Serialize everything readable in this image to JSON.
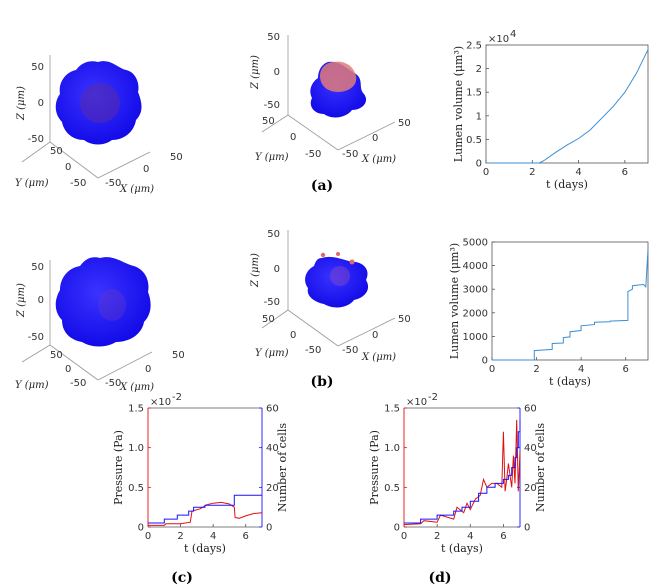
{
  "captions": {
    "a": "(a)",
    "b": "(b)",
    "c": "(c)",
    "d": "(d)"
  },
  "renders": {
    "x_label": "X (μm)",
    "y_label": "Y (μm)",
    "z_label": "Z (μm)",
    "z_ticks": [
      "50",
      "0",
      "-50"
    ],
    "x_ticks": [
      "-50",
      "0",
      "50"
    ],
    "y_ticks": [
      "50",
      "0",
      "-50"
    ],
    "colors": {
      "cells": "#1a12ff",
      "lumen": "#e07a7a"
    }
  },
  "chart_data": [
    {
      "id": "lumen_a",
      "type": "line",
      "xlabel": "t (days)",
      "ylabel": "Lumen volume (μm³)",
      "exponent_label": "×10",
      "exponent_power": "4",
      "xlim": [
        0,
        7
      ],
      "ylim": [
        0,
        2.5
      ],
      "x_ticks": [
        0,
        2,
        4,
        6
      ],
      "y_ticks": [
        0,
        0.5,
        1,
        1.5,
        2,
        2.5
      ],
      "y_tick_labels": [
        "0",
        "0.5",
        "1",
        "1.5",
        "2",
        "2.5"
      ],
      "series": [
        {
          "name": "lumen volume",
          "color": "#3b8fd4",
          "x": [
            0,
            2.3,
            2.5,
            3,
            3.5,
            4,
            4.5,
            5,
            5.5,
            6,
            6.5,
            7
          ],
          "y": [
            0,
            0,
            0.05,
            0.22,
            0.38,
            0.52,
            0.7,
            0.95,
            1.2,
            1.5,
            1.9,
            2.4
          ]
        }
      ]
    },
    {
      "id": "lumen_b",
      "type": "line",
      "xlabel": "t (days)",
      "ylabel": "Lumen volume (μm³)",
      "xlim": [
        0,
        7
      ],
      "ylim": [
        0,
        5000
      ],
      "x_ticks": [
        0,
        2,
        4,
        6
      ],
      "y_ticks": [
        0,
        1000,
        2000,
        3000,
        4000,
        5000
      ],
      "y_tick_labels": [
        "0",
        "1000",
        "2000",
        "3000",
        "4000",
        "5000"
      ],
      "series": [
        {
          "name": "lumen volume",
          "color": "#3b8fd4",
          "x": [
            0,
            1.9,
            1.9,
            2.7,
            2.7,
            3.2,
            3.2,
            3.5,
            3.5,
            4.0,
            4.0,
            4.6,
            4.6,
            5.3,
            5.3,
            6.1,
            6.1,
            6.3,
            6.3,
            6.8,
            6.9,
            7.0
          ],
          "y": [
            0,
            0,
            400,
            450,
            700,
            720,
            950,
            980,
            1200,
            1250,
            1450,
            1500,
            1600,
            1620,
            1650,
            1680,
            2900,
            3000,
            3150,
            3200,
            3100,
            4700
          ]
        }
      ]
    },
    {
      "id": "pressure_c",
      "type": "line",
      "xlabel": "t (days)",
      "ylabel_left": "Pressure (Pa)",
      "ylabel_right": "Number of cells",
      "exponent_label": "×10",
      "exponent_power": "-2",
      "xlim": [
        0,
        7
      ],
      "ylim_left": [
        0,
        1.5
      ],
      "ylim_right": [
        0,
        60
      ],
      "x_ticks": [
        0,
        2,
        4,
        6
      ],
      "y_ticks_left": [
        0,
        0.5,
        1.0,
        1.5
      ],
      "y_tick_labels_left": [
        "0",
        "0.5",
        "1.0",
        "1.5"
      ],
      "y_ticks_right": [
        0,
        20,
        40,
        60
      ],
      "y_tick_labels_right": [
        "0",
        "20",
        "40",
        "60"
      ],
      "series": [
        {
          "name": "pressure",
          "axis": "left",
          "color": "#e01010",
          "x": [
            0,
            1.0,
            1.1,
            1.8,
            2.0,
            2.6,
            2.7,
            3.2,
            3.6,
            4.0,
            4.5,
            5.0,
            5.3,
            5.35,
            5.6,
            6.0,
            6.5,
            7.0
          ],
          "y": [
            0.02,
            0.02,
            0.04,
            0.04,
            0.04,
            0.06,
            0.2,
            0.23,
            0.28,
            0.3,
            0.31,
            0.29,
            0.25,
            0.12,
            0.11,
            0.14,
            0.17,
            0.18
          ]
        },
        {
          "name": "cells",
          "axis": "right",
          "color": "#1a12ff",
          "step": true,
          "x": [
            0,
            1.0,
            1.8,
            2.5,
            2.8,
            3.5,
            5.3,
            7.0
          ],
          "y": [
            2,
            4,
            6,
            8,
            10,
            11,
            16,
            16
          ]
        }
      ]
    },
    {
      "id": "pressure_d",
      "type": "line",
      "xlabel": "t (days)",
      "ylabel_left": "Pressure (Pa)",
      "ylabel_right": "Number of cells",
      "exponent_label": "×10",
      "exponent_power": "-2",
      "xlim": [
        0,
        7
      ],
      "ylim_left": [
        0,
        1.5
      ],
      "ylim_right": [
        0,
        60
      ],
      "x_ticks": [
        0,
        2,
        4,
        6
      ],
      "y_ticks_left": [
        0,
        0.5,
        1.0,
        1.5
      ],
      "y_tick_labels_left": [
        "0",
        "0.5",
        "1.0",
        "1.5"
      ],
      "y_ticks_right": [
        0,
        20,
        40,
        60
      ],
      "y_tick_labels_right": [
        "0",
        "20",
        "40",
        "60"
      ],
      "series": [
        {
          "name": "pressure",
          "axis": "left",
          "color": "#e01010",
          "x": [
            0,
            1.0,
            1.2,
            2.0,
            2.2,
            3.0,
            3.2,
            3.6,
            3.8,
            4.0,
            4.3,
            4.6,
            4.8,
            5.0,
            5.3,
            5.6,
            5.9,
            6.0,
            6.1,
            6.2,
            6.3,
            6.5,
            6.6,
            6.7,
            6.8,
            6.9,
            7.0
          ],
          "y": [
            0.03,
            0.04,
            0.08,
            0.06,
            0.15,
            0.1,
            0.25,
            0.18,
            0.3,
            0.22,
            0.35,
            0.4,
            0.6,
            0.5,
            0.55,
            0.55,
            0.5,
            1.2,
            0.45,
            0.6,
            0.8,
            0.5,
            0.9,
            0.55,
            1.35,
            0.45,
            0.95
          ]
        },
        {
          "name": "cells",
          "axis": "right",
          "color": "#1a12ff",
          "step": true,
          "x": [
            0,
            1.0,
            2.0,
            3.0,
            3.5,
            4.0,
            4.5,
            5.0,
            5.5,
            6.0,
            6.3,
            6.5,
            6.7,
            6.8,
            6.9,
            7.0
          ],
          "y": [
            2,
            4,
            6,
            8,
            10,
            13,
            17,
            20,
            22,
            24,
            26,
            30,
            35,
            40,
            48,
            54
          ]
        }
      ]
    }
  ]
}
